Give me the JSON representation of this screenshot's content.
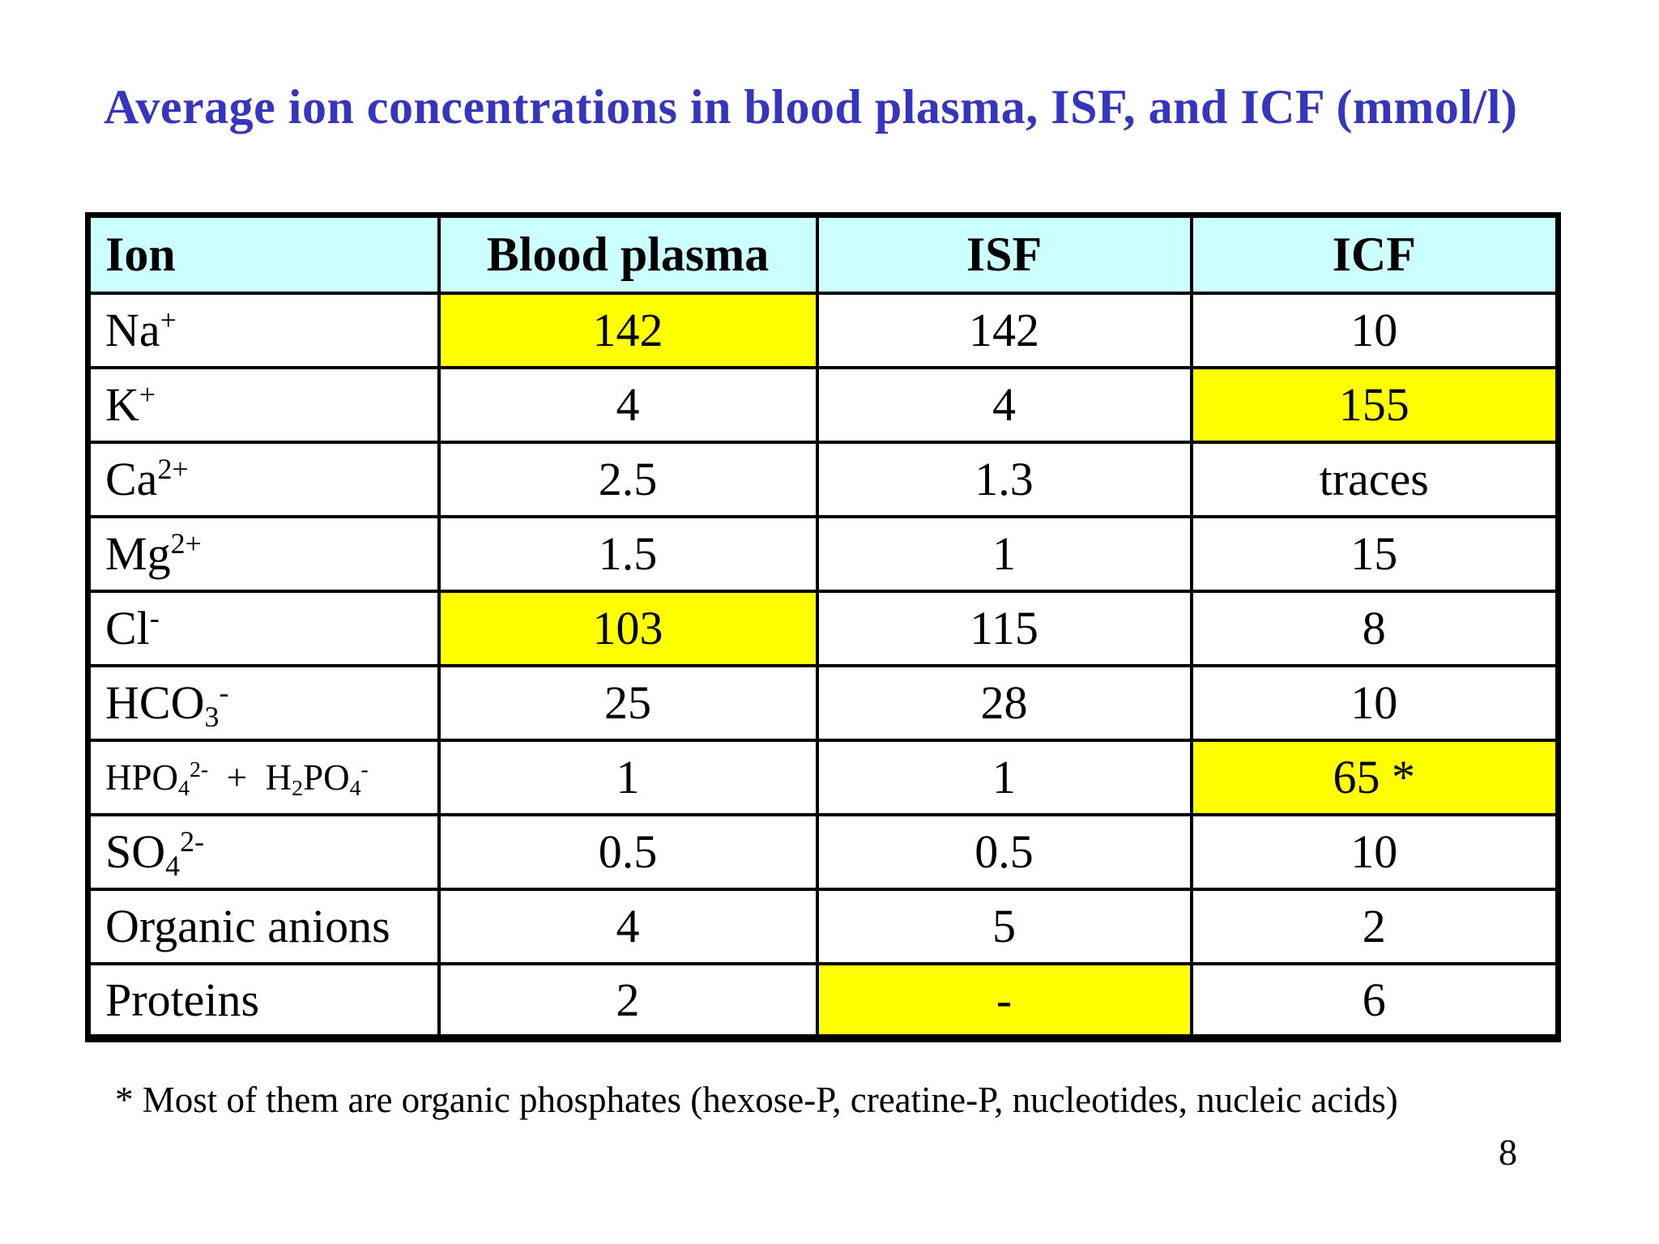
{
  "title": "Average ion concentrations in blood plasma, ISF, and ICF (mmol/l)",
  "footnote": "* Most of them are organic phosphates (hexose-P, creatine-P, nucleotides, nucleic acids)",
  "page_number": "8",
  "colors": {
    "title": "#3535BE",
    "header_bg": "#CCFFFF",
    "highlight": "#FFFF00"
  },
  "chart_data": {
    "type": "table",
    "title": "Average ion concentrations in blood plasma, ISF, and ICF (mmol/l)",
    "columns": [
      "Ion",
      "Blood plasma",
      "ISF",
      "ICF"
    ],
    "rows": [
      {
        "ion": "Na+",
        "ion_html": "Na<sup>+</sup>",
        "blood_plasma": "142",
        "isf": "142",
        "icf": "10",
        "highlight": "blood_plasma"
      },
      {
        "ion": "K+",
        "ion_html": "K<sup>+</sup>",
        "blood_plasma": "4",
        "isf": "4",
        "icf": "155",
        "highlight": "icf"
      },
      {
        "ion": "Ca2+",
        "ion_html": "Ca<sup>2+</sup>",
        "blood_plasma": "2.5",
        "isf": "1.3",
        "icf": "traces",
        "highlight": null
      },
      {
        "ion": "Mg2+",
        "ion_html": "Mg<sup>2+</sup>",
        "blood_plasma": "1.5",
        "isf": "1",
        "icf": "15",
        "highlight": null
      },
      {
        "ion": "Cl-",
        "ion_html": "Cl<sup>-</sup>",
        "blood_plasma": "103",
        "isf": "115",
        "icf": "8",
        "highlight": "blood_plasma"
      },
      {
        "ion": "HCO3-",
        "ion_html": "HCO<sub>3</sub><sup>-</sup>",
        "blood_plasma": "25",
        "isf": "28",
        "icf": "10",
        "highlight": null
      },
      {
        "ion": "HPO42- + H2PO4-",
        "ion_html": "HPO<sub>4</sub><sup>2-</sup> &nbsp;+&nbsp; H<sub>2</sub>PO<sub>4</sub><sup>-</sup>",
        "blood_plasma": "1",
        "isf": "1",
        "icf": "65 *",
        "highlight": "icf"
      },
      {
        "ion": "SO42-",
        "ion_html": "SO<sub>4</sub><sup>2-</sup>",
        "blood_plasma": "0.5",
        "isf": "0.5",
        "icf": "10",
        "highlight": null
      },
      {
        "ion": "Organic anions",
        "ion_html": "Organic anions",
        "blood_plasma": "4",
        "isf": "5",
        "icf": "2",
        "highlight": null
      },
      {
        "ion": "Proteins",
        "ion_html": "Proteins",
        "blood_plasma": "2",
        "isf": "-",
        "icf": "6",
        "highlight": "isf"
      }
    ]
  }
}
